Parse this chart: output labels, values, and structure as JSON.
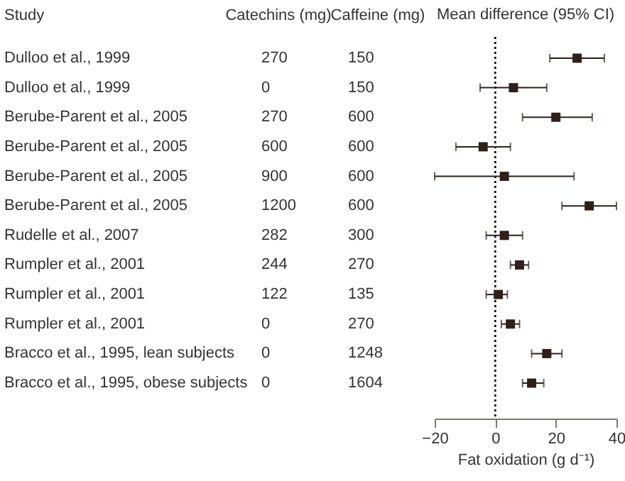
{
  "chart_data": [
    {
      "type": "heatmap",
      "ylabel": "Study",
      "categories": [
        "Catechins (mg)",
        "Caffeine (mg)"
      ],
      "y_categories": [
        "Dulloo et al., 1999",
        "Dulloo et al., 1999",
        "Berube-Parent et al., 2005",
        "Berube-Parent et al., 2005",
        "Berube-Parent et al., 2005",
        "Berube-Parent et al., 2005",
        "Rudelle et al., 2007",
        "Rumpler et al., 2001",
        "Rumpler et al., 2001",
        "Rumpler et al., 2001",
        "Bracco et al., 1995, lean subjects",
        "Bracco et al., 1995, obese subjects"
      ],
      "cells": [
        [
          270,
          150
        ],
        [
          0,
          150
        ],
        [
          270,
          600
        ],
        [
          600,
          600
        ],
        [
          900,
          600
        ],
        [
          1200,
          600
        ],
        [
          282,
          300
        ],
        [
          244,
          270
        ],
        [
          122,
          135
        ],
        [
          0,
          270
        ],
        [
          0,
          1248
        ],
        [
          0,
          1604
        ]
      ],
      "data_labels": true
    },
    {
      "type": "scatter",
      "orientation": "horizontal",
      "title": "Mean difference (95% CI)",
      "xlabel": "Fat oxidation (g d⁻¹)",
      "categories": [
        null,
        null,
        null,
        null,
        null,
        null,
        null,
        null,
        null,
        null,
        null,
        null
      ],
      "values": [
        27,
        6,
        20,
        -4,
        3,
        31,
        3,
        8,
        1,
        5,
        17,
        12
      ],
      "errors": [
        [
          18,
          36
        ],
        [
          -5,
          17
        ],
        [
          9,
          32
        ],
        [
          -13,
          5
        ],
        [
          -20,
          26
        ],
        [
          22,
          40
        ],
        [
          -3,
          9
        ],
        [
          5,
          11
        ],
        [
          -3,
          4
        ],
        [
          2,
          8
        ],
        [
          12,
          22
        ],
        [
          9,
          16
        ]
      ],
      "color": "#2e2018",
      "marker": "square",
      "xlim": [
        -20,
        40
      ],
      "xticks": [
        -20,
        0,
        20,
        40
      ],
      "tick_labels": "x",
      "ref_lines": [
        {
          "axis": "x",
          "value": 0,
          "line_style": "dotted",
          "color": "#000000"
        }
      ]
    }
  ]
}
